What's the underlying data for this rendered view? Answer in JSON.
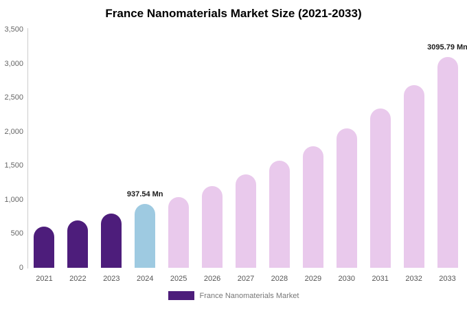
{
  "chart_data": {
    "type": "bar",
    "title": "France Nanomaterials Market Size (2021-2033)",
    "categories": [
      "2021",
      "2022",
      "2023",
      "2024",
      "2025",
      "2026",
      "2027",
      "2028",
      "2029",
      "2030",
      "2031",
      "2032",
      "2033"
    ],
    "values": [
      610,
      700,
      800,
      937.54,
      1040,
      1200,
      1370,
      1570,
      1790,
      2050,
      2340,
      2680,
      3095.79
    ],
    "bar_colors": [
      "#4d1d7b",
      "#4d1d7b",
      "#4d1d7b",
      "#9ecae1",
      "#e9c9ec",
      "#e9c9ec",
      "#e9c9ec",
      "#e9c9ec",
      "#e9c9ec",
      "#e9c9ec",
      "#e9c9ec",
      "#e9c9ec",
      "#e9c9ec"
    ],
    "ylim": [
      0,
      3500
    ],
    "ytick_values": [
      0,
      500,
      1000,
      1500,
      2000,
      2500,
      3000,
      3500
    ],
    "ytick_labels": [
      "0",
      "500",
      "1,000",
      "1,500",
      "2,000",
      "2,500",
      "3,000",
      "3,500"
    ],
    "grid": false,
    "data_labels": [
      {
        "category": "2024",
        "text": "937.54 Mn"
      },
      {
        "category": "2033",
        "text": "3095.79 Mn"
      }
    ],
    "legend_position": "bottom",
    "legend_label": "France Nanomaterials Market",
    "legend_color": "#4d1d7b",
    "axis_color": "#cccccc",
    "colors": {
      "historical_bars": "#4d1d7b",
      "current_year_bar": "#9ecae1",
      "forecast_bars": "#e9c9ec",
      "title_text": "#000000",
      "tick_text": "#666666",
      "background": "#ffffff"
    }
  }
}
